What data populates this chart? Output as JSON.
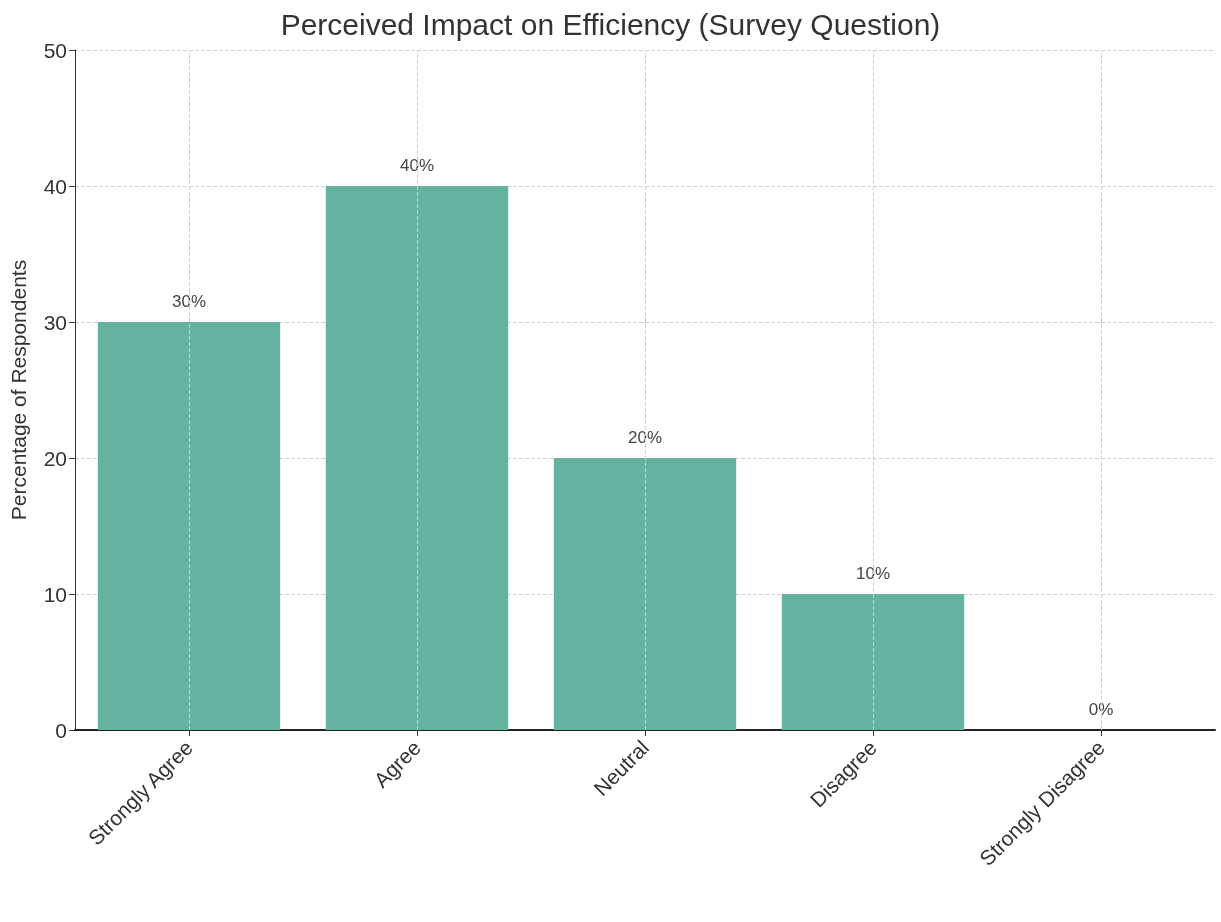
{
  "chart_data": {
    "type": "bar",
    "title": "Perceived Impact on Efficiency (Survey Question)",
    "ylabel": "Percentage of Respondents",
    "categories": [
      "Strongly Agree",
      "Agree",
      "Neutral",
      "Disagree",
      "Strongly Disagree"
    ],
    "values": [
      30,
      40,
      20,
      10,
      0
    ],
    "color": "#66b2a0",
    "value_labels": [
      "30%",
      "40%",
      "20%",
      "10%",
      "0%"
    ],
    "ylim": [
      0,
      50
    ],
    "yticks": [
      0,
      10,
      20,
      30,
      40,
      50
    ],
    "grid": true
  }
}
